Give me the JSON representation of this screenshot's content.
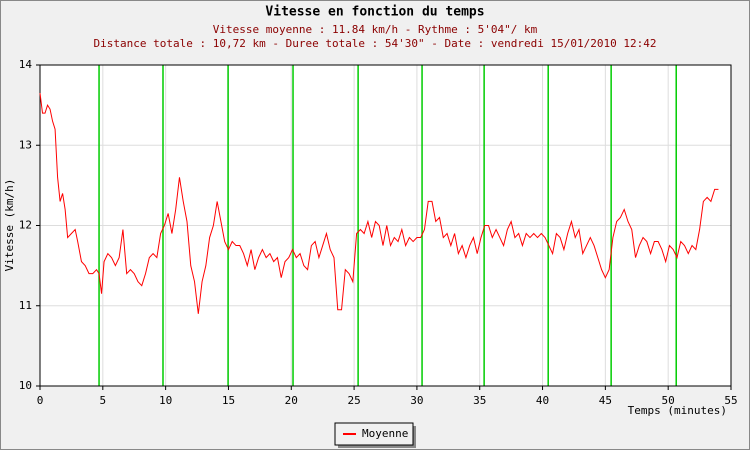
{
  "chart_data": {
    "type": "line",
    "title": "Vitesse en fonction du temps",
    "subtitle": [
      "Vitesse moyenne : 11.84 km/h - Rythme : 5'04\"/ km",
      "Distance totale : 10,72 km - Duree totale : 54'30\" - Date : vendredi 15/01/2010 12:42"
    ],
    "x_label": "Temps (minutes)",
    "y_label": "Vitesse (km/h)",
    "xlim": [
      0,
      55
    ],
    "ylim": [
      10,
      14
    ],
    "xticks": [
      0,
      5,
      10,
      15,
      20,
      25,
      30,
      35,
      40,
      45,
      50,
      55
    ],
    "yticks": [
      10,
      11,
      12,
      13,
      14
    ],
    "grid": true,
    "legend": "bottom",
    "markers": {
      "color": "#00cc00",
      "x": [
        4.7,
        9.79,
        14.97,
        20.14,
        25.32,
        30.41,
        35.35,
        40.45,
        45.46,
        50.64
      ]
    },
    "x": [
      0,
      0.2,
      0.4,
      0.6,
      0.8,
      1.0,
      1.2,
      1.4,
      1.6,
      1.8,
      2.0,
      2.2,
      2.5,
      2.8,
      3.0,
      3.3,
      3.6,
      3.9,
      4.2,
      4.5,
      4.7,
      4.9,
      5.1,
      5.4,
      5.7,
      6.0,
      6.3,
      6.6,
      6.9,
      7.2,
      7.5,
      7.8,
      8.1,
      8.4,
      8.7,
      9.0,
      9.3,
      9.6,
      9.9,
      10.2,
      10.5,
      10.8,
      11.1,
      11.4,
      11.7,
      12.0,
      12.3,
      12.6,
      12.9,
      13.2,
      13.5,
      13.8,
      14.1,
      14.4,
      14.7,
      15.0,
      15.3,
      15.6,
      15.9,
      16.2,
      16.5,
      16.8,
      17.1,
      17.4,
      17.7,
      18.0,
      18.3,
      18.6,
      18.9,
      19.2,
      19.5,
      19.8,
      20.1,
      20.4,
      20.7,
      21.0,
      21.3,
      21.6,
      21.9,
      22.2,
      22.5,
      22.8,
      23.1,
      23.4,
      23.7,
      24.0,
      24.3,
      24.6,
      24.9,
      25.2,
      25.5,
      25.8,
      26.1,
      26.4,
      26.7,
      27.0,
      27.3,
      27.6,
      27.9,
      28.2,
      28.5,
      28.8,
      29.1,
      29.4,
      29.7,
      30.0,
      30.3,
      30.6,
      30.9,
      31.2,
      31.5,
      31.8,
      32.1,
      32.4,
      32.7,
      33.0,
      33.3,
      33.6,
      33.9,
      34.2,
      34.5,
      34.8,
      35.1,
      35.4,
      35.7,
      36.0,
      36.3,
      36.6,
      36.9,
      37.2,
      37.5,
      37.8,
      38.1,
      38.4,
      38.7,
      39.0,
      39.3,
      39.6,
      39.9,
      40.2,
      40.5,
      40.8,
      41.1,
      41.4,
      41.7,
      42.0,
      42.3,
      42.6,
      42.9,
      43.2,
      43.5,
      43.8,
      44.1,
      44.4,
      44.7,
      45.0,
      45.3,
      45.6,
      45.9,
      46.2,
      46.5,
      46.8,
      47.1,
      47.4,
      47.7,
      48.0,
      48.3,
      48.6,
      48.9,
      49.2,
      49.5,
      49.8,
      50.1,
      50.4,
      50.7,
      51.0,
      51.3,
      51.6,
      51.9,
      52.2,
      52.5,
      52.8,
      53.1,
      53.4,
      53.7,
      54.0
    ],
    "series": [
      {
        "name": "Moyenne",
        "color": "#ff0000",
        "values": [
          13.65,
          13.4,
          13.4,
          13.5,
          13.45,
          13.3,
          13.2,
          12.6,
          12.3,
          12.4,
          12.2,
          11.85,
          11.9,
          11.95,
          11.8,
          11.55,
          11.5,
          11.4,
          11.4,
          11.45,
          11.4,
          11.15,
          11.55,
          11.65,
          11.6,
          11.5,
          11.6,
          11.95,
          11.4,
          11.45,
          11.4,
          11.3,
          11.25,
          11.4,
          11.6,
          11.65,
          11.6,
          11.9,
          12.0,
          12.15,
          11.9,
          12.2,
          12.6,
          12.3,
          12.05,
          11.5,
          11.3,
          10.9,
          11.3,
          11.5,
          11.85,
          12.0,
          12.3,
          12.05,
          11.8,
          11.7,
          11.8,
          11.75,
          11.75,
          11.65,
          11.5,
          11.7,
          11.45,
          11.6,
          11.7,
          11.6,
          11.65,
          11.55,
          11.6,
          11.35,
          11.55,
          11.6,
          11.7,
          11.6,
          11.65,
          11.5,
          11.45,
          11.75,
          11.8,
          11.6,
          11.75,
          11.9,
          11.7,
          11.6,
          10.95,
          10.95,
          11.45,
          11.4,
          11.3,
          11.9,
          11.95,
          11.9,
          12.05,
          11.85,
          12.05,
          12.0,
          11.75,
          12.0,
          11.75,
          11.85,
          11.8,
          11.95,
          11.75,
          11.85,
          11.8,
          11.85,
          11.85,
          11.95,
          12.3,
          12.3,
          12.05,
          12.1,
          11.85,
          11.9,
          11.75,
          11.9,
          11.65,
          11.75,
          11.6,
          11.75,
          11.85,
          11.65,
          11.85,
          12.0,
          12.0,
          11.85,
          11.95,
          11.85,
          11.75,
          11.95,
          12.05,
          11.85,
          11.9,
          11.75,
          11.9,
          11.85,
          11.9,
          11.85,
          11.9,
          11.85,
          11.75,
          11.65,
          11.9,
          11.85,
          11.7,
          11.9,
          12.05,
          11.85,
          11.95,
          11.65,
          11.75,
          11.85,
          11.75,
          11.6,
          11.45,
          11.35,
          11.45,
          11.85,
          12.05,
          12.1,
          12.2,
          12.05,
          11.95,
          11.6,
          11.75,
          11.85,
          11.8,
          11.65,
          11.8,
          11.8,
          11.7,
          11.55,
          11.75,
          11.7,
          11.6,
          11.8,
          11.75,
          11.65,
          11.75,
          11.7,
          11.95,
          12.3,
          12.35,
          12.3,
          12.45,
          12.45
        ]
      }
    ]
  }
}
